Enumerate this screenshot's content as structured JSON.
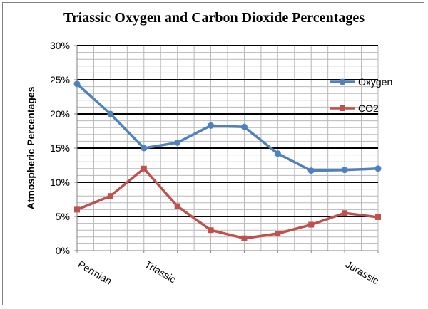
{
  "chart_data": {
    "type": "line",
    "title": "Triassic Oxygen and Carbon Dioxide Percentages",
    "xlabel": "",
    "ylabel": "Atmospheric Percentages",
    "ylim": [
      0,
      30
    ],
    "yticks": [
      "0%",
      "5%",
      "10%",
      "15%",
      "20%",
      "25%",
      "30%"
    ],
    "x_tick_labels": [
      {
        "index": 0,
        "label": "Permian"
      },
      {
        "index": 2,
        "label": "Triassic"
      },
      {
        "index": 8,
        "label": "Jurassic"
      }
    ],
    "point_count": 10,
    "grid": true,
    "legend": "right",
    "series": [
      {
        "name": "Oxygen",
        "color": "#4F81BD",
        "marker": "circle",
        "values": [
          24.4,
          20.0,
          15.0,
          15.8,
          18.3,
          18.1,
          14.2,
          11.7,
          11.8,
          12.0
        ]
      },
      {
        "name": "CO2",
        "color": "#C0504D",
        "marker": "square",
        "values": [
          6.0,
          8.0,
          12.0,
          6.5,
          3.0,
          1.8,
          2.5,
          3.8,
          5.5,
          4.9
        ]
      }
    ]
  }
}
